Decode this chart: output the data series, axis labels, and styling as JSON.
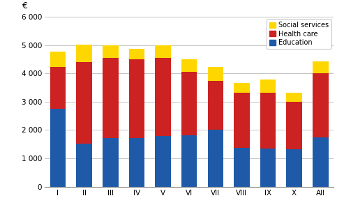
{
  "categories": [
    "I",
    "II",
    "III",
    "IV",
    "V",
    "VI",
    "VII",
    "VIII",
    "IX",
    "X",
    "All"
  ],
  "education": [
    2750,
    1520,
    1720,
    1720,
    1800,
    1820,
    2000,
    1370,
    1350,
    1330,
    1730
  ],
  "health_care": [
    1470,
    2890,
    2840,
    2780,
    2760,
    2230,
    1750,
    1950,
    1980,
    1660,
    2270
  ],
  "social_services": [
    550,
    620,
    440,
    380,
    430,
    450,
    480,
    340,
    450,
    340,
    440
  ],
  "education_color": "#1F5AA8",
  "health_care_color": "#CC2222",
  "social_services_color": "#FFD700",
  "ylabel": "€",
  "ylim": [
    0,
    6000
  ],
  "yticks": [
    0,
    1000,
    2000,
    3000,
    4000,
    5000,
    6000
  ],
  "legend_labels": [
    "Social services",
    "Health care",
    "Education"
  ],
  "grid_color": "#bbbbbb",
  "fig_width": 4.93,
  "fig_height": 3.04,
  "dpi": 100
}
